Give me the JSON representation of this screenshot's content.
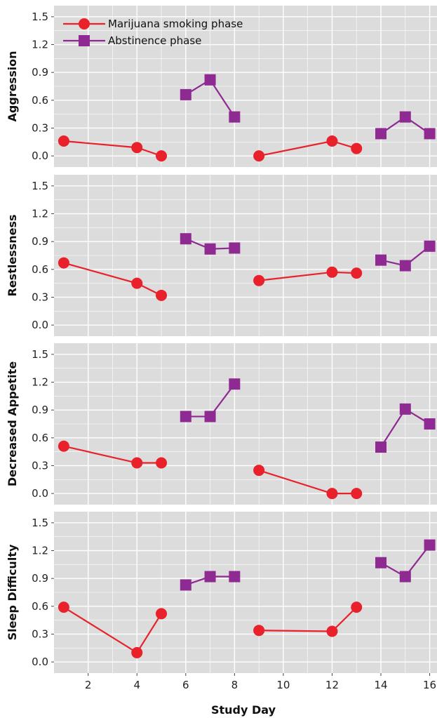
{
  "colors": {
    "panel_bg": "#dcdcdc",
    "grid": "#ffffff",
    "marijuana": "#e8212b",
    "abstinence": "#8e2a91"
  },
  "chart_data": {
    "type": "line",
    "xlabel": "Study Day",
    "xlim": [
      0.6,
      16.3
    ],
    "x_ticks": [
      2,
      4,
      6,
      8,
      10,
      12,
      14,
      16
    ],
    "ylim": [
      -0.12,
      1.62
    ],
    "y_ticks": [
      0.0,
      0.3,
      0.6,
      0.9,
      1.2,
      1.5
    ],
    "grid": true,
    "legend": {
      "position": "top-left",
      "entries": [
        {
          "label": "Marijuana smoking phase",
          "marker": "circle",
          "color": "#e8212b"
        },
        {
          "label": "Abstinence phase",
          "marker": "square",
          "color": "#8e2a91"
        }
      ]
    },
    "panels": [
      {
        "ylabel": "Aggression",
        "series": [
          {
            "name": "Marijuana smoking phase",
            "segments": [
              [
                [
                  1,
                  0.16
                ],
                [
                  4,
                  0.09
                ],
                [
                  5,
                  0.0
                ]
              ],
              [
                [
                  9,
                  0.0
                ],
                [
                  12,
                  0.16
                ],
                [
                  13,
                  0.08
                ]
              ]
            ]
          },
          {
            "name": "Abstinence phase",
            "segments": [
              [
                [
                  6,
                  0.66
                ],
                [
                  7,
                  0.82
                ],
                [
                  8,
                  0.42
                ]
              ],
              [
                [
                  14,
                  0.24
                ],
                [
                  15,
                  0.42
                ],
                [
                  16,
                  0.24
                ]
              ]
            ]
          }
        ]
      },
      {
        "ylabel": "Restlessness",
        "series": [
          {
            "name": "Marijuana smoking phase",
            "segments": [
              [
                [
                  1,
                  0.67
                ],
                [
                  4,
                  0.45
                ],
                [
                  5,
                  0.32
                ]
              ],
              [
                [
                  9,
                  0.48
                ],
                [
                  12,
                  0.57
                ],
                [
                  13,
                  0.56
                ]
              ]
            ]
          },
          {
            "name": "Abstinence phase",
            "segments": [
              [
                [
                  6,
                  0.93
                ],
                [
                  7,
                  0.82
                ],
                [
                  8,
                  0.83
                ]
              ],
              [
                [
                  14,
                  0.7
                ],
                [
                  15,
                  0.64
                ],
                [
                  16,
                  0.85
                ]
              ]
            ]
          }
        ]
      },
      {
        "ylabel": "Decreased Appetite",
        "series": [
          {
            "name": "Marijuana smoking phase",
            "segments": [
              [
                [
                  1,
                  0.51
                ],
                [
                  4,
                  0.33
                ],
                [
                  5,
                  0.33
                ]
              ],
              [
                [
                  9,
                  0.25
                ],
                [
                  12,
                  0.0
                ],
                [
                  13,
                  0.0
                ]
              ]
            ]
          },
          {
            "name": "Abstinence phase",
            "segments": [
              [
                [
                  6,
                  0.83
                ],
                [
                  7,
                  0.83
                ],
                [
                  8,
                  1.18
                ]
              ],
              [
                [
                  14,
                  0.5
                ],
                [
                  15,
                  0.91
                ],
                [
                  16,
                  0.75
                ]
              ]
            ]
          }
        ]
      },
      {
        "ylabel": "Sleep Difficulty",
        "series": [
          {
            "name": "Marijuana smoking phase",
            "segments": [
              [
                [
                  1,
                  0.59
                ],
                [
                  4,
                  0.1
                ],
                [
                  5,
                  0.52
                ]
              ],
              [
                [
                  9,
                  0.34
                ],
                [
                  12,
                  0.33
                ],
                [
                  13,
                  0.59
                ]
              ]
            ]
          },
          {
            "name": "Abstinence phase",
            "segments": [
              [
                [
                  6,
                  0.83
                ],
                [
                  7,
                  0.92
                ],
                [
                  8,
                  0.92
                ]
              ],
              [
                [
                  14,
                  1.07
                ],
                [
                  15,
                  0.92
                ],
                [
                  16,
                  1.26
                ]
              ]
            ]
          }
        ]
      }
    ]
  }
}
